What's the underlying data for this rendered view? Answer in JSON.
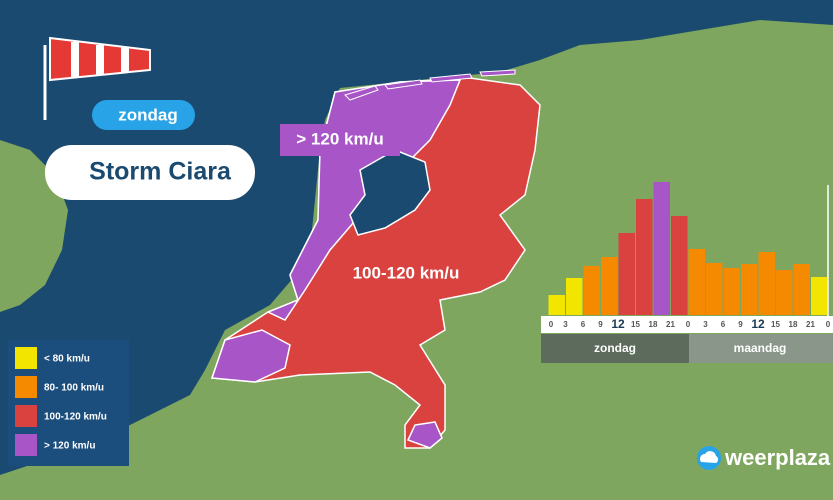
{
  "header": {
    "day": "zondag",
    "title": "Storm Ciara"
  },
  "map": {
    "labels": [
      "> 120 km/u",
      "100-120 km/u"
    ]
  },
  "chart_data": {
    "type": "bar",
    "hour_labels": [
      "0",
      "3",
      "6",
      "9",
      "12",
      "15",
      "18",
      "21",
      "0",
      "3",
      "6",
      "9",
      "12",
      "15",
      "18",
      "21",
      "0"
    ],
    "values": [
      20,
      37,
      49,
      58,
      82,
      116,
      133,
      99,
      66,
      52,
      47,
      51,
      63,
      45,
      51,
      38
    ],
    "colors": [
      "#f2e600",
      "#f2e600",
      "#f58a00",
      "#f58a00",
      "#d9423f",
      "#d9423f",
      "#a855c8",
      "#d9423f",
      "#f58a00",
      "#f58a00",
      "#f58a00",
      "#f58a00",
      "#f58a00",
      "#f58a00",
      "#f58a00",
      "#f2e600"
    ],
    "ylim": [
      0,
      140
    ],
    "day_labels": [
      "zondag",
      "maandag"
    ]
  },
  "legend": {
    "items": [
      {
        "label": "< 80 km/u",
        "color": "#f2e600"
      },
      {
        "label": "80- 100 km/u",
        "color": "#f58a00"
      },
      {
        "label": "100-120 km/u",
        "color": "#d9423f"
      },
      {
        "label": "> 120 km/u",
        "color": "#a855c8"
      }
    ]
  },
  "logo": "weerplaza"
}
